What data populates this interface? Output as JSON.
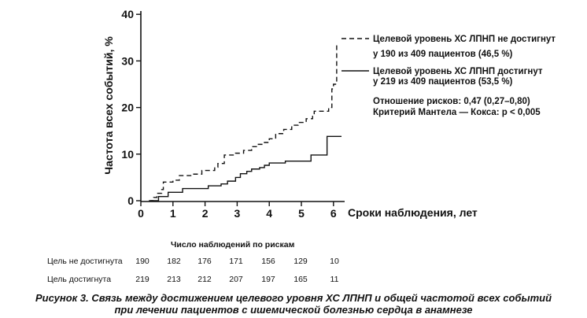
{
  "chart_data": {
    "type": "line",
    "xlabel": "Сроки наблюдения, лет",
    "ylabel": "Частота всех событий, %",
    "xlim": [
      0,
      6.3
    ],
    "ylim": [
      0,
      40
    ],
    "xticks": [
      0,
      1,
      2,
      3,
      4,
      5,
      6
    ],
    "yticks": [
      0,
      10,
      20,
      30,
      40
    ],
    "grid": false,
    "legend_position": "right",
    "series": [
      {
        "name": "Целевой уровень ХС ЛПНП не достигнут",
        "note": "у 190 из 409 пациентов (46,5 %)",
        "style": "dashed",
        "color": "#111111",
        "x": [
          0.25,
          0.4,
          0.5,
          0.65,
          0.7,
          1.0,
          1.2,
          1.6,
          1.9,
          2.3,
          2.4,
          2.6,
          2.95,
          3.2,
          3.45,
          3.6,
          3.85,
          4.0,
          4.2,
          4.45,
          4.7,
          4.9,
          5.15,
          5.35,
          5.4,
          5.85,
          5.95,
          6.0,
          6.1
        ],
        "y": [
          0,
          0.7,
          1.6,
          2.4,
          4.0,
          4.4,
          5.4,
          5.7,
          6.5,
          7.2,
          8.0,
          9.8,
          10.2,
          10.8,
          11.6,
          12.1,
          12.5,
          13.3,
          14.4,
          15.3,
          16.2,
          16.8,
          17.6,
          18.4,
          19.2,
          20.0,
          24.0,
          25.0,
          34.0
        ]
      },
      {
        "name": "Целевой уровень ХС ЛПНП достигнут",
        "note": "у 219 из 409 пациентов (53,5 %)",
        "style": "solid",
        "color": "#111111",
        "x": [
          0.3,
          0.55,
          0.85,
          1.3,
          2.1,
          2.5,
          2.7,
          2.95,
          3.1,
          3.3,
          3.45,
          3.7,
          3.85,
          4.0,
          4.5,
          5.3,
          5.8,
          6.25
        ],
        "y": [
          0,
          0.9,
          1.8,
          2.6,
          3.2,
          3.6,
          4.2,
          5.0,
          5.8,
          6.3,
          6.8,
          7.1,
          7.6,
          8.1,
          8.5,
          9.8,
          13.8,
          13.8
        ]
      }
    ],
    "annotations": [
      "Отношение рисков: 0,47 (0,27–0,80)",
      "Критерий Мантела — Кокса: p < 0,005"
    ],
    "risk_table": {
      "title": "Число наблюдений по рискам",
      "rows": [
        {
          "label": "Цель не достигнута",
          "values": [
            "190",
            "182",
            "176",
            "171",
            "156",
            "129",
            "10"
          ]
        },
        {
          "label": "Цель достигнута",
          "values": [
            "219",
            "213",
            "212",
            "207",
            "197",
            "165",
            "11"
          ]
        }
      ]
    }
  },
  "caption": {
    "line1": "Рисунок 3. Связь между достижением целевого уровня ХС ЛПНП и общей частотой всех событий",
    "line2": "при лечении пациентов с ишемической болезнью сердца в анамнезе"
  }
}
